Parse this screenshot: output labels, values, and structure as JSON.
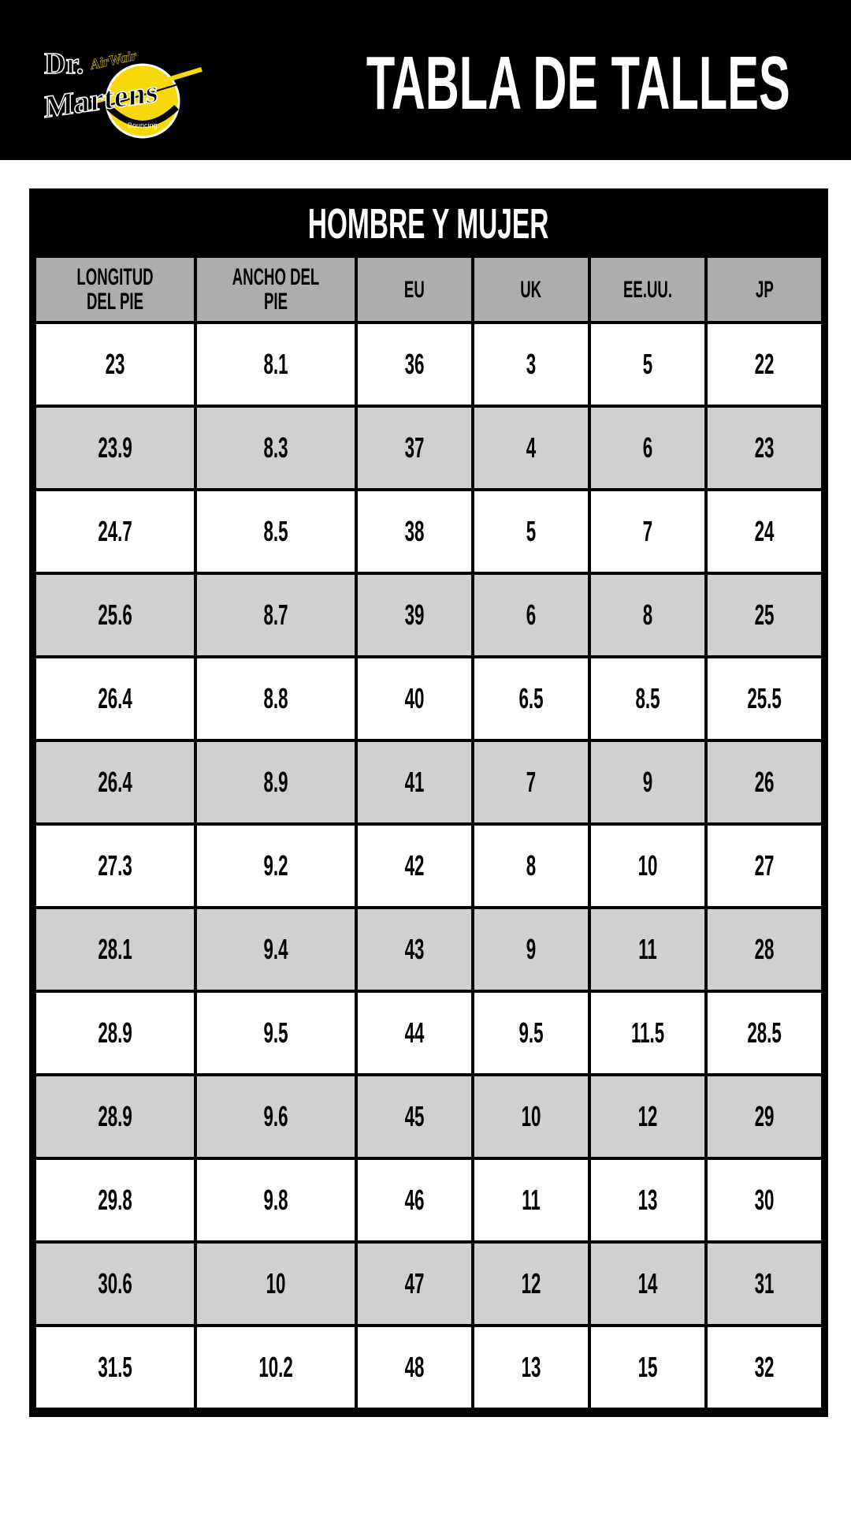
{
  "header": {
    "logo": {
      "brand": "Dr. Martens",
      "sub": "AirWair",
      "tagline": "Bouncing Soles"
    },
    "title": "TABLA DE TALLES"
  },
  "colors": {
    "header_bg": "#000000",
    "column_header_bg": "#adadad",
    "row_alt_bg": "#d0d0d0",
    "logo_yellow": "#f5d90a"
  },
  "table": {
    "title": "HOMBRE Y MUJER",
    "columns": [
      "LONGITUD DEL PIE",
      "ANCHO DEL PIE",
      "EU",
      "UK",
      "EE.UU.",
      "JP"
    ],
    "rows": [
      [
        "23",
        "8.1",
        "36",
        "3",
        "5",
        "22"
      ],
      [
        "23.9",
        "8.3",
        "37",
        "4",
        "6",
        "23"
      ],
      [
        "24.7",
        "8.5",
        "38",
        "5",
        "7",
        "24"
      ],
      [
        "25.6",
        "8.7",
        "39",
        "6",
        "8",
        "25"
      ],
      [
        "26.4",
        "8.8",
        "40",
        "6.5",
        "8.5",
        "25.5"
      ],
      [
        "26.4",
        "8.9",
        "41",
        "7",
        "9",
        "26"
      ],
      [
        "27.3",
        "9.2",
        "42",
        "8",
        "10",
        "27"
      ],
      [
        "28.1",
        "9.4",
        "43",
        "9",
        "11",
        "28"
      ],
      [
        "28.9",
        "9.5",
        "44",
        "9.5",
        "11.5",
        "28.5"
      ],
      [
        "28.9",
        "9.6",
        "45",
        "10",
        "12",
        "29"
      ],
      [
        "29.8",
        "9.8",
        "46",
        "11",
        "13",
        "30"
      ],
      [
        "30.6",
        "10",
        "47",
        "12",
        "14",
        "31"
      ],
      [
        "31.5",
        "10.2",
        "48",
        "13",
        "15",
        "32"
      ]
    ]
  }
}
